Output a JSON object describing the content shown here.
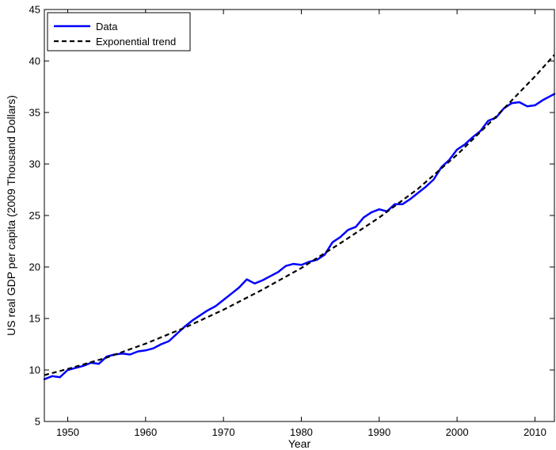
{
  "chart_data": {
    "type": "line",
    "title": "",
    "xlabel": "Year",
    "ylabel": "US real GDP per capita (2009 Thousand Dollars)",
    "xlim": [
      1947,
      2012.5
    ],
    "ylim": [
      5,
      45
    ],
    "xticks": [
      1950,
      1960,
      1970,
      1980,
      1990,
      2000,
      2010
    ],
    "yticks": [
      5,
      10,
      15,
      20,
      25,
      30,
      35,
      40,
      45
    ],
    "grid": false,
    "legend_position": "top-left",
    "series": [
      {
        "name": "Data",
        "color": "#0000ff",
        "style": "solid",
        "x": [
          1947,
          1948,
          1949,
          1950,
          1951,
          1952,
          1953,
          1954,
          1955,
          1956,
          1957,
          1958,
          1959,
          1960,
          1961,
          1962,
          1963,
          1964,
          1965,
          1966,
          1967,
          1968,
          1969,
          1970,
          1971,
          1972,
          1973,
          1974,
          1975,
          1976,
          1977,
          1978,
          1979,
          1980,
          1981,
          1982,
          1983,
          1984,
          1985,
          1986,
          1987,
          1988,
          1989,
          1990,
          1991,
          1992,
          1993,
          1994,
          1995,
          1996,
          1997,
          1998,
          1999,
          2000,
          2001,
          2002,
          2003,
          2004,
          2005,
          2006,
          2007,
          2008,
          2009,
          2010,
          2011,
          2012,
          2012.5
        ],
        "y": [
          9.1,
          9.4,
          9.3,
          10.0,
          10.2,
          10.4,
          10.7,
          10.6,
          11.3,
          11.5,
          11.6,
          11.5,
          11.8,
          11.9,
          12.1,
          12.5,
          12.8,
          13.5,
          14.2,
          14.8,
          15.3,
          15.8,
          16.2,
          16.8,
          17.4,
          18.0,
          18.8,
          18.4,
          18.7,
          19.1,
          19.5,
          20.1,
          20.3,
          20.2,
          20.5,
          20.7,
          21.2,
          22.4,
          22.9,
          23.6,
          23.9,
          24.8,
          25.3,
          25.6,
          25.4,
          26.1,
          26.1,
          26.6,
          27.2,
          27.8,
          28.5,
          29.7,
          30.4,
          31.4,
          31.9,
          32.6,
          33.2,
          34.2,
          34.5,
          35.4,
          35.9,
          36.0,
          35.6,
          35.7,
          36.2,
          36.6,
          36.8
        ]
      },
      {
        "name": "Exponential trend",
        "color": "#000000",
        "style": "dashed",
        "x": [
          1947,
          1950,
          1955,
          1960,
          1965,
          1970,
          1975,
          1980,
          1985,
          1990,
          1995,
          2000,
          2005,
          2010,
          2012.5
        ],
        "y": [
          9.5,
          10.1,
          11.2,
          12.55,
          14.1,
          15.85,
          17.8,
          19.9,
          22.3,
          24.8,
          27.6,
          30.9,
          34.6,
          38.5,
          40.6
        ]
      }
    ]
  }
}
